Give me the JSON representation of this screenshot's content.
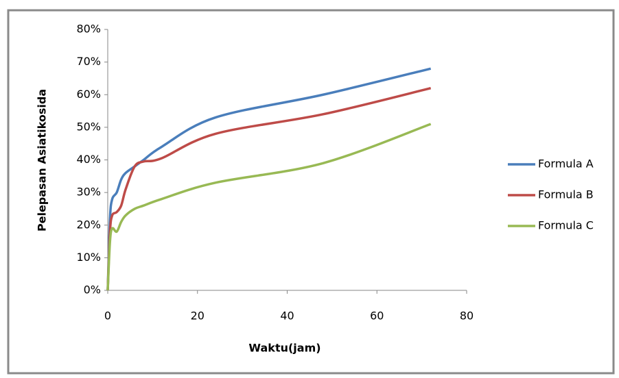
{
  "chart_data": {
    "type": "line",
    "xlabel": "Waktu(jam)",
    "ylabel": "Pelepasan Asiatikosida",
    "x": [
      0,
      0.5,
      1,
      2,
      3,
      4,
      6,
      8,
      12,
      24,
      48,
      72
    ],
    "series": [
      {
        "name": "Formula A",
        "color": "#4a7ebb",
        "values": [
          0,
          22,
          28,
          30,
          34,
          36,
          38,
          40,
          44,
          53,
          60,
          68
        ]
      },
      {
        "name": "Formula B",
        "color": "#be4b48",
        "values": [
          0,
          18,
          23,
          24,
          26,
          31,
          38,
          39.5,
          40.5,
          48,
          54,
          62
        ]
      },
      {
        "name": "Formula C",
        "color": "#98b954",
        "values": [
          0,
          15,
          19,
          18,
          21,
          23,
          25,
          26,
          28,
          33,
          39,
          51
        ]
      }
    ],
    "xlim": [
      0,
      80
    ],
    "xticks": [
      0,
      20,
      40,
      60,
      80
    ],
    "ylim": [
      0,
      80
    ],
    "yticks": [
      {
        "value": 0,
        "label": "0%"
      },
      {
        "value": 10,
        "label": "10%"
      },
      {
        "value": 20,
        "label": "20%"
      },
      {
        "value": 30,
        "label": "30%"
      },
      {
        "value": 40,
        "label": "40%"
      },
      {
        "value": 50,
        "label": "50%"
      },
      {
        "value": 60,
        "label": "60%"
      },
      {
        "value": 70,
        "label": "70%"
      },
      {
        "value": 80,
        "label": "80%"
      }
    ],
    "legend": "right",
    "grid": false
  }
}
